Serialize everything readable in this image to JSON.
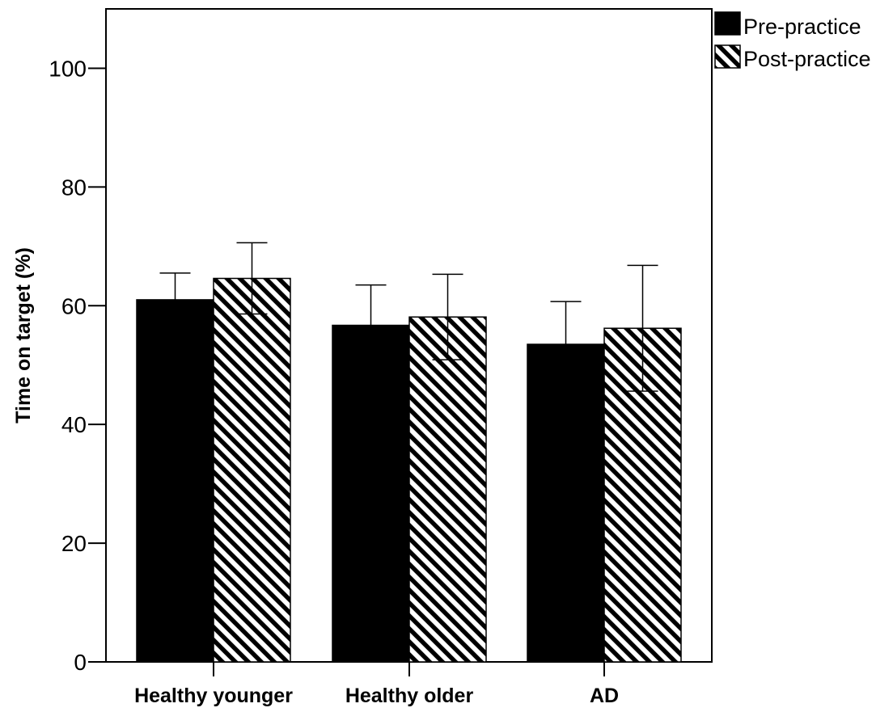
{
  "chart_data": {
    "type": "bar",
    "title": "",
    "xlabel": "",
    "ylabel": "Time on target (%)",
    "categories": [
      "Healthy younger",
      "Healthy older",
      "AD"
    ],
    "series": [
      {
        "name": "Pre-practice",
        "values": [
          61.0,
          56.7,
          53.5
        ],
        "error": [
          4.5,
          6.8,
          7.2
        ],
        "fill": "solid",
        "color": "#000000"
      },
      {
        "name": "Post-practice",
        "values": [
          64.6,
          58.1,
          56.2
        ],
        "error": [
          6.0,
          7.2,
          10.6
        ],
        "fill": "diagonal-hatch",
        "color": "#000000"
      }
    ],
    "ylim": [
      0,
      110
    ],
    "yticks": [
      0,
      20,
      40,
      60,
      80,
      100
    ],
    "error_bars": "upper and lower whiskers around each bar top",
    "grid": false,
    "legend": "top-right, outside plot area"
  }
}
